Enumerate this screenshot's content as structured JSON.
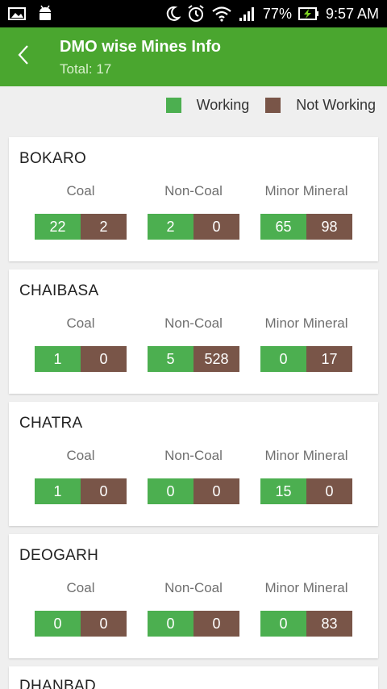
{
  "status": {
    "battery": "77%",
    "time": "9:57 AM"
  },
  "header": {
    "title": "DMO wise Mines Info",
    "subtitle": "Total: 17"
  },
  "legend": {
    "working": "Working",
    "not_working": "Not Working",
    "working_color": "#4caf50",
    "not_working_color": "#795548"
  },
  "columns": [
    "Coal",
    "Non-Coal",
    "Minor Mineral"
  ],
  "districts": [
    {
      "name": "BOKARO",
      "coal": [
        "22",
        "2"
      ],
      "noncoal": [
        "2",
        "0"
      ],
      "minor": [
        "65",
        "98"
      ]
    },
    {
      "name": "CHAIBASA",
      "coal": [
        "1",
        "0"
      ],
      "noncoal": [
        "5",
        "528"
      ],
      "minor": [
        "0",
        "17"
      ]
    },
    {
      "name": "CHATRA",
      "coal": [
        "1",
        "0"
      ],
      "noncoal": [
        "0",
        "0"
      ],
      "minor": [
        "15",
        "0"
      ]
    },
    {
      "name": "DEOGARH",
      "coal": [
        "0",
        "0"
      ],
      "noncoal": [
        "0",
        "0"
      ],
      "minor": [
        "0",
        "83"
      ]
    },
    {
      "name": "DHANBAD"
    }
  ]
}
